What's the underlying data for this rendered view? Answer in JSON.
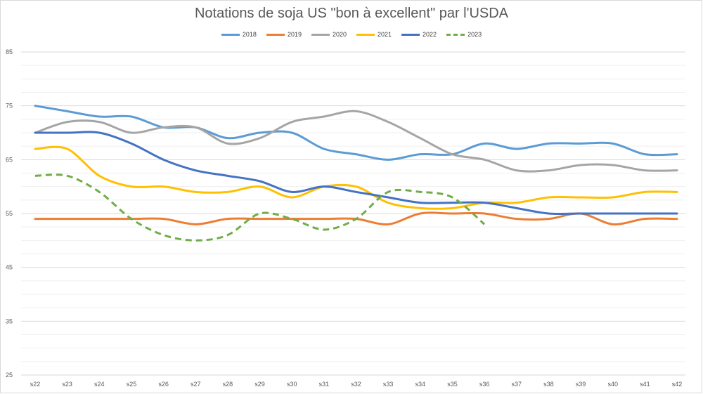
{
  "chart_data": {
    "type": "line",
    "title": "Notations de soja US \"bon à excellent\" par l'USDA",
    "categories": [
      "s22",
      "s23",
      "s24",
      "s25",
      "s26",
      "s27",
      "s28",
      "s29",
      "s30",
      "s31",
      "s32",
      "s33",
      "s34",
      "s35",
      "s36",
      "s37",
      "s38",
      "s39",
      "s40",
      "s41",
      "s42"
    ],
    "ylim": [
      25,
      85
    ],
    "yticks": [
      25,
      35,
      45,
      55,
      65,
      75,
      85
    ],
    "grid": true,
    "legend_position": "top",
    "series": [
      {
        "name": "2018",
        "color": "#5b9bd5",
        "dashed": false,
        "values": [
          75,
          74,
          73,
          73,
          71,
          71,
          69,
          70,
          70,
          67,
          66,
          65,
          66,
          66,
          68,
          67,
          68,
          68,
          68,
          66,
          66
        ]
      },
      {
        "name": "2019",
        "color": "#ed7d31",
        "dashed": false,
        "values": [
          54,
          54,
          54,
          54,
          54,
          53,
          54,
          54,
          54,
          54,
          54,
          53,
          55,
          55,
          55,
          54,
          54,
          55,
          53,
          54,
          54
        ]
      },
      {
        "name": "2020",
        "color": "#a5a5a5",
        "dashed": false,
        "values": [
          70,
          72,
          72,
          70,
          71,
          71,
          68,
          69,
          72,
          73,
          74,
          72,
          69,
          66,
          65,
          63,
          63,
          64,
          64,
          63,
          63
        ]
      },
      {
        "name": "2021",
        "color": "#ffc000",
        "dashed": false,
        "values": [
          67,
          67,
          62,
          60,
          60,
          59,
          59,
          60,
          58,
          60,
          60,
          57,
          56,
          56,
          57,
          57,
          58,
          58,
          58,
          59,
          59
        ]
      },
      {
        "name": "2022",
        "color": "#4472c4",
        "dashed": false,
        "values": [
          70,
          70,
          70,
          68,
          65,
          63,
          62,
          61,
          59,
          60,
          59,
          58,
          57,
          57,
          57,
          56,
          55,
          55,
          55,
          55,
          55
        ]
      },
      {
        "name": "2023",
        "color": "#70ad47",
        "dashed": true,
        "values": [
          62,
          62,
          59,
          54,
          51,
          50,
          51,
          55,
          54,
          52,
          54,
          59,
          59,
          58,
          53,
          null,
          null,
          null,
          null,
          null,
          null
        ]
      }
    ]
  }
}
